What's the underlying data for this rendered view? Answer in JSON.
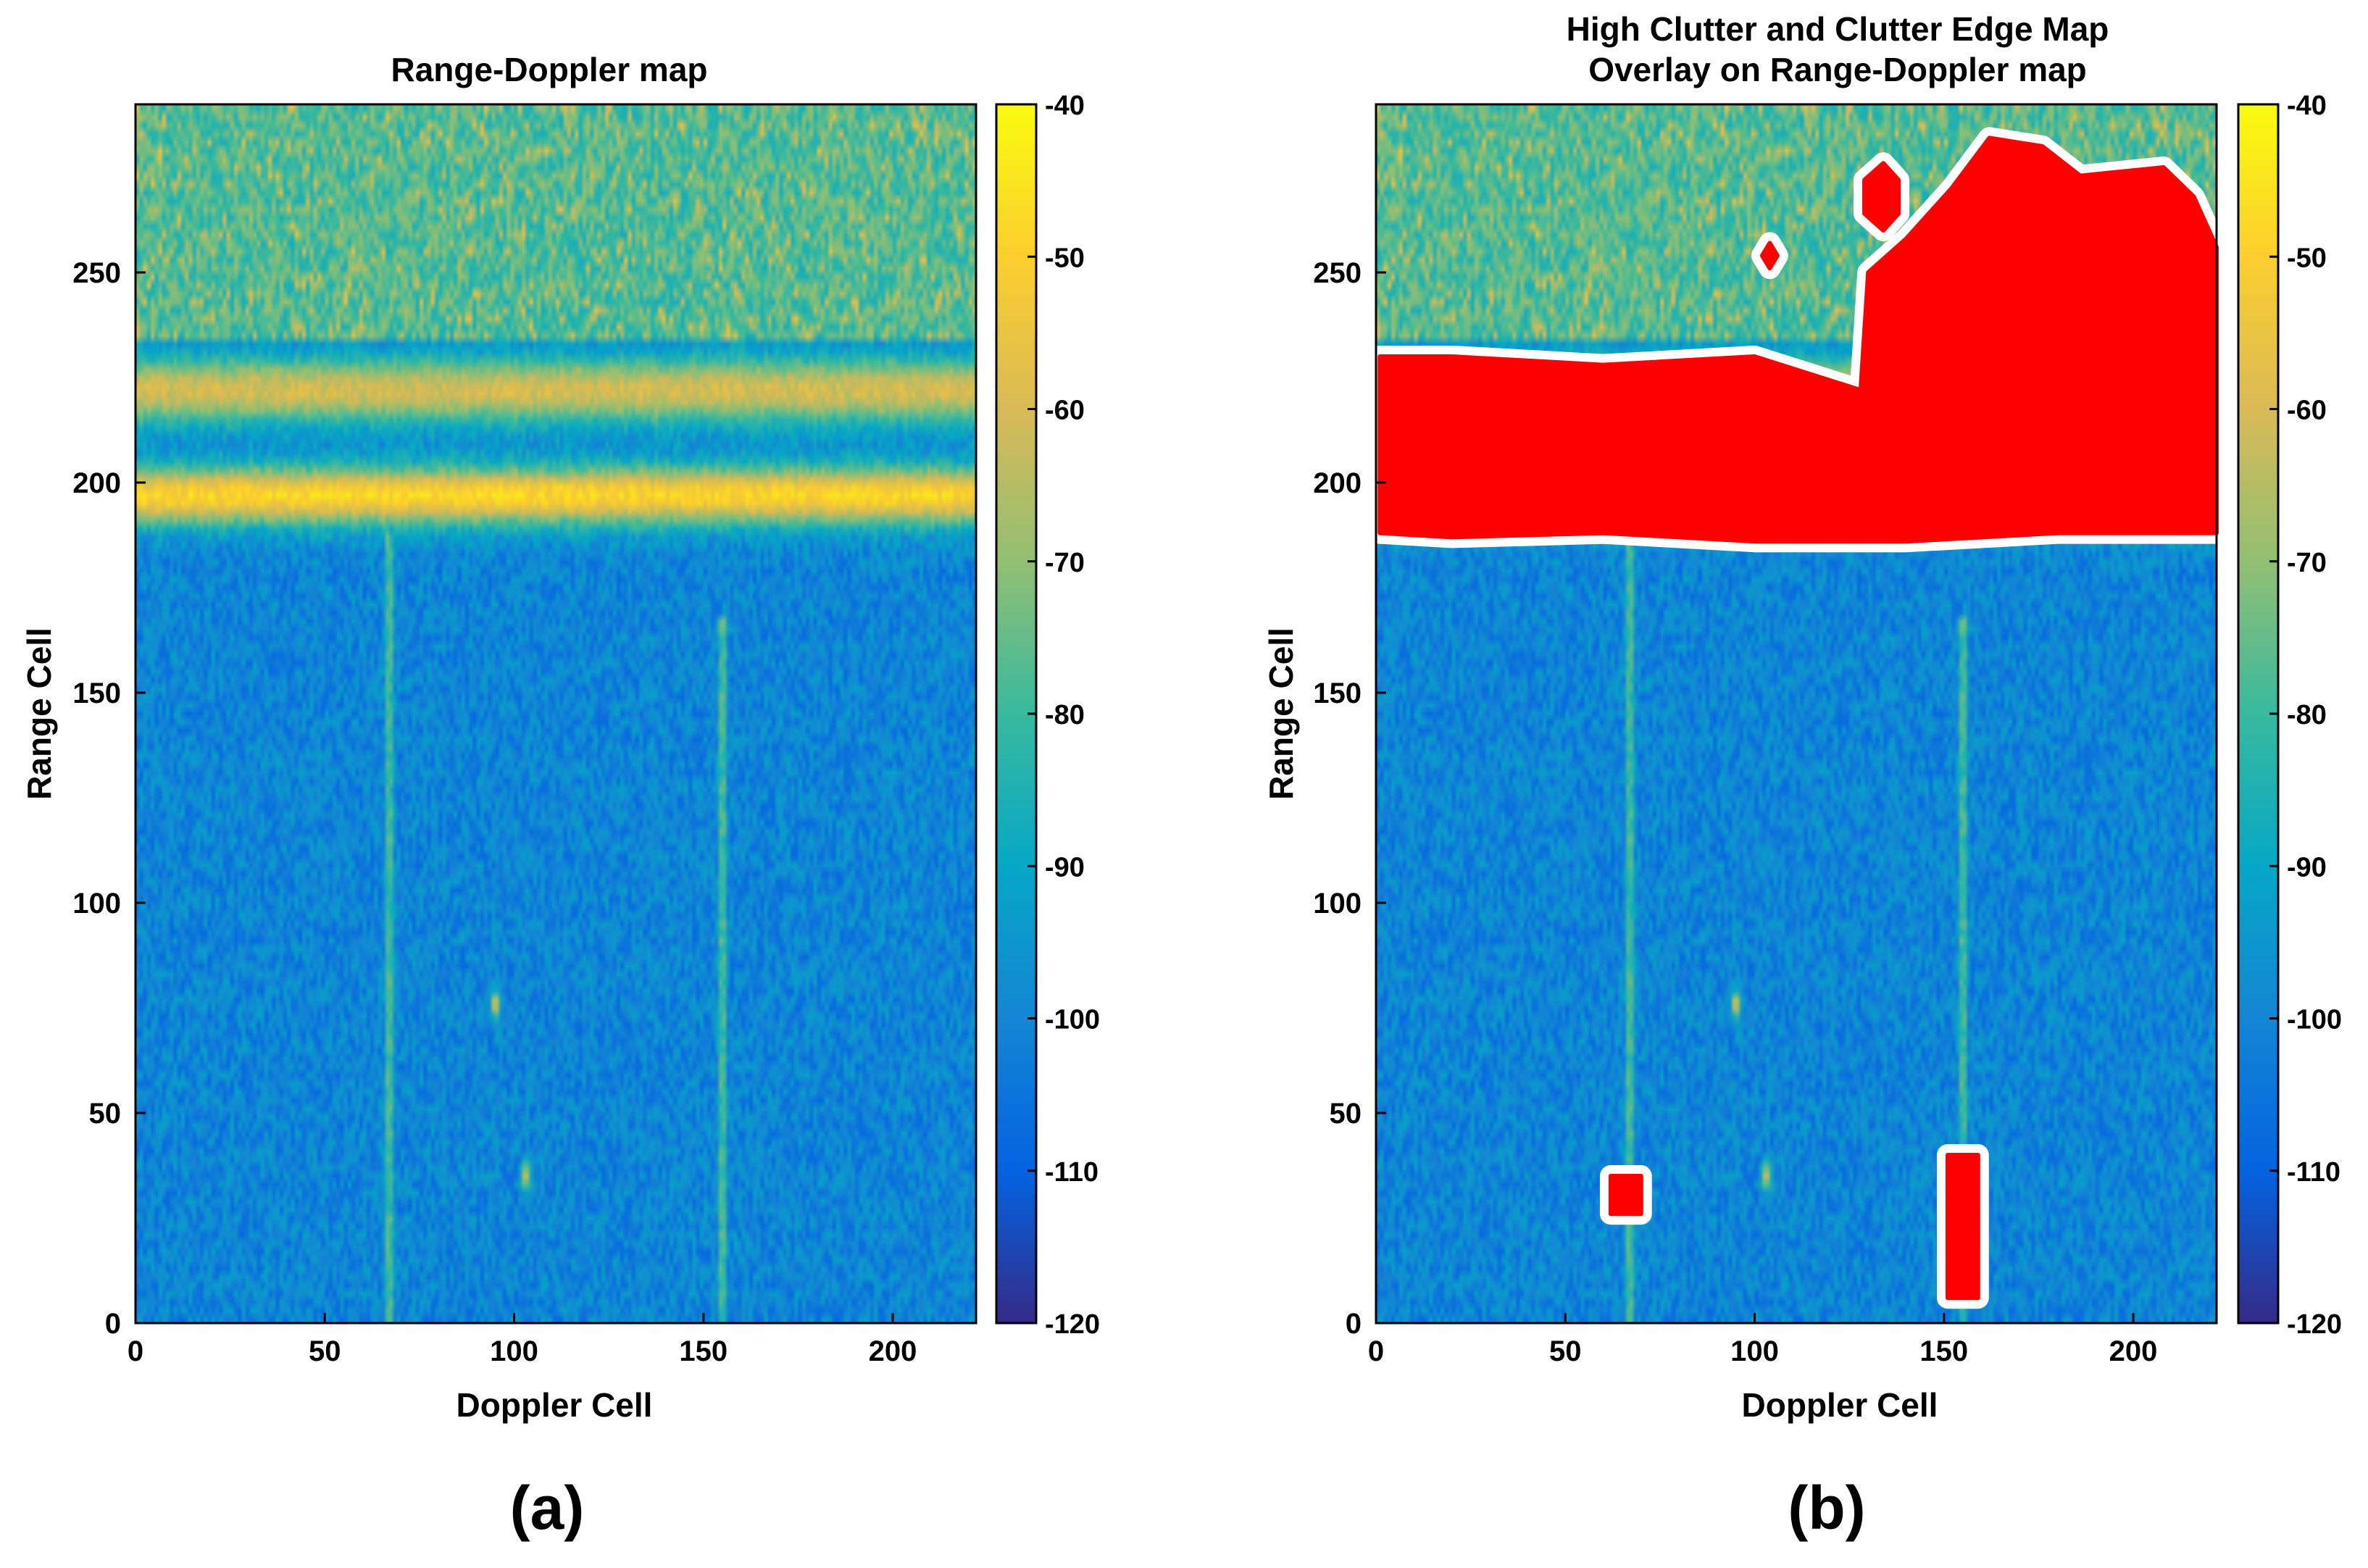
{
  "figure": {
    "panel_a_label": "(a)",
    "panel_b_label": "(b)"
  },
  "chart_data": [
    {
      "type": "heatmap",
      "title": "Range-Doppler map",
      "xlabel": "Doppler Cell",
      "ylabel": "Range Cell",
      "xlim": [
        0,
        222
      ],
      "ylim": [
        0,
        290
      ],
      "xticks": [
        0,
        50,
        100,
        150,
        200
      ],
      "yticks": [
        0,
        50,
        100,
        150,
        200,
        250
      ],
      "grid": false,
      "colorbar": {
        "colormap": "parula",
        "clim": [
          -120,
          -40
        ],
        "ticks": [
          -40,
          -50,
          -60,
          -70,
          -80,
          -90,
          -100,
          -110,
          -120
        ]
      },
      "background_level_db": -100,
      "clutter_bands": [
        {
          "range_center": 197,
          "half_width": 7,
          "level_db": -48,
          "description": "strong clutter band"
        },
        {
          "range_center": 222,
          "half_width": 8,
          "level_db": -60,
          "description": "secondary clutter band"
        },
        {
          "range_min": 235,
          "range_max": 290,
          "level_db": -78,
          "description": "diffuse clutter region"
        }
      ],
      "target_lines": [
        {
          "doppler": 67,
          "range_min": 0,
          "range_max": 188,
          "level_db": -75
        },
        {
          "doppler": 155,
          "range_min": 0,
          "range_max": 168,
          "level_db": -75
        }
      ],
      "point_targets": [
        {
          "doppler": 95,
          "range": 76,
          "level_db": -55
        },
        {
          "doppler": 103,
          "range": 35,
          "level_db": -58
        }
      ]
    },
    {
      "type": "heatmap",
      "title": [
        "High Clutter and Clutter Edge Map",
        "Overlay on Range-Doppler map"
      ],
      "xlabel": "Doppler Cell",
      "ylabel": "Range Cell",
      "xlim": [
        0,
        222
      ],
      "ylim": [
        0,
        290
      ],
      "xticks": [
        0,
        50,
        100,
        150,
        200
      ],
      "yticks": [
        0,
        50,
        100,
        150,
        200,
        250
      ],
      "grid": false,
      "colorbar": {
        "colormap": "parula",
        "clim": [
          -120,
          -40
        ],
        "ticks": [
          -40,
          -50,
          -60,
          -70,
          -80,
          -90,
          -100,
          -110,
          -120
        ]
      },
      "overlay": {
        "high_clutter_color": "#ff0000",
        "clutter_edge_color": "#ffffff",
        "high_clutter_regions": [
          {
            "description": "main clutter block",
            "polygon": [
              [
                1,
                188
              ],
              [
                20,
                187
              ],
              [
                60,
                188
              ],
              [
                100,
                186
              ],
              [
                140,
                186
              ],
              [
                180,
                188
              ],
              [
                222,
                188
              ],
              [
                222,
                256
              ],
              [
                216,
                268
              ],
              [
                208,
                275
              ],
              [
                186,
                273
              ],
              [
                176,
                280
              ],
              [
                162,
                282
              ],
              [
                152,
                270
              ],
              [
                140,
                258
              ],
              [
                130,
                250
              ],
              [
                128,
                222
              ],
              [
                100,
                230
              ],
              [
                60,
                228
              ],
              [
                20,
                230
              ],
              [
                1,
                230
              ]
            ]
          },
          {
            "description": "small blob",
            "polygon": [
              [
                129,
                272
              ],
              [
                134,
                276
              ],
              [
                138,
                272
              ],
              [
                138,
                264
              ],
              [
                134,
                260
              ],
              [
                129,
                264
              ]
            ]
          },
          {
            "description": "tiny blob",
            "polygon": [
              [
                102,
                254
              ],
              [
                104,
                257
              ],
              [
                106,
                254
              ],
              [
                104,
                251
              ]
            ]
          },
          {
            "description": "target box near doppler 65",
            "polygon": [
              [
                62,
                26
              ],
              [
                70,
                26
              ],
              [
                70,
                35
              ],
              [
                62,
                35
              ]
            ]
          },
          {
            "description": "target box near doppler 155",
            "polygon": [
              [
                151,
                6
              ],
              [
                159,
                6
              ],
              [
                159,
                40
              ],
              [
                151,
                40
              ]
            ]
          }
        ]
      }
    }
  ]
}
